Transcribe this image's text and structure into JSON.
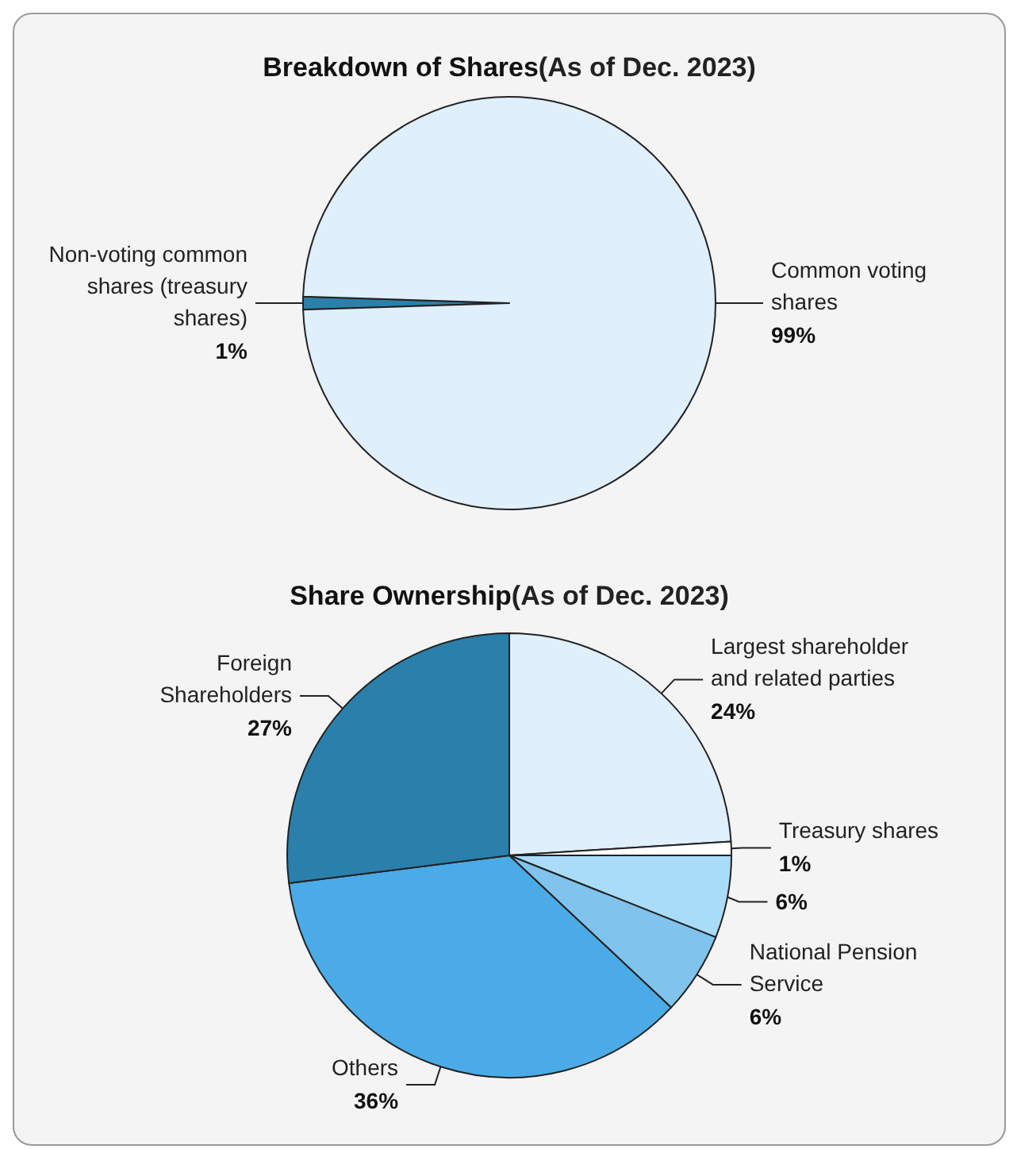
{
  "chart_data": [
    {
      "type": "pie",
      "title": "Breakdown of Shares",
      "subtitle": "(As of Dec. 2023)",
      "categories": [
        "Non-voting common shares (treasury shares)",
        "Common voting shares"
      ],
      "values": [
        1,
        99
      ],
      "value_labels": [
        "1%",
        "99%"
      ],
      "colors": [
        "#2a80ab",
        "#dfeffc"
      ],
      "legend": false
    },
    {
      "type": "pie",
      "title": "Share Ownership",
      "subtitle": "(As of Dec. 2023)",
      "categories": [
        "Largest shareholder and related parties",
        "Treasury shares",
        null,
        "National Pension Service",
        "Others",
        "Foreign Shareholders"
      ],
      "values": [
        24,
        1,
        6,
        6,
        36,
        27
      ],
      "value_labels": [
        "24%",
        "1%",
        "6%",
        "6%",
        "36%",
        "27%"
      ],
      "colors": [
        "#dfeffc",
        "#ffffff",
        "#a9dcf8",
        "#80c3ec",
        "#4babe6",
        "#2a80ab"
      ],
      "legend": false
    }
  ]
}
